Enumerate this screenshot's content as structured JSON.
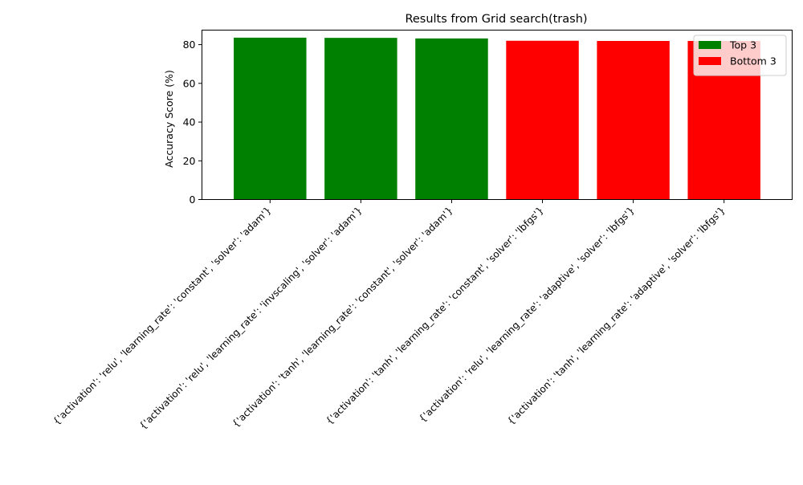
{
  "chart_data": {
    "type": "bar",
    "title": "Results from Grid search(trash)",
    "xlabel": "",
    "ylabel": "Accuracy Score (%)",
    "ylim": [
      0,
      87.5
    ],
    "yticks": [
      0,
      20,
      40,
      60,
      80
    ],
    "categories": [
      "{'activation': 'relu', 'learning_rate': 'constant', 'solver': 'adam'}",
      "{'activation': 'relu', 'learning_rate': 'invscaling', 'solver': 'adam'}",
      "{'activation': 'tanh', 'learning_rate': 'constant', 'solver': 'adam'}",
      "{'activation': 'tanh', 'learning_rate': 'constant', 'solver': 'lbfgs'}",
      "{'activation': 'relu', 'learning_rate': 'adaptive', 'solver': 'lbfgs'}",
      "{'activation': 'tanh', 'learning_rate': 'adaptive', 'solver': 'lbfgs'}"
    ],
    "values": [
      83.6,
      83.5,
      83.2,
      82.0,
      81.9,
      81.9
    ],
    "groups": [
      "top",
      "top",
      "top",
      "bottom",
      "bottom",
      "bottom"
    ],
    "series": [
      {
        "name": "Top 3",
        "key": "top",
        "color": "#008000"
      },
      {
        "name": "Bottom 3",
        "key": "bottom",
        "color": "#ff0000"
      }
    ],
    "legend_position": "top-right",
    "grid": false
  }
}
